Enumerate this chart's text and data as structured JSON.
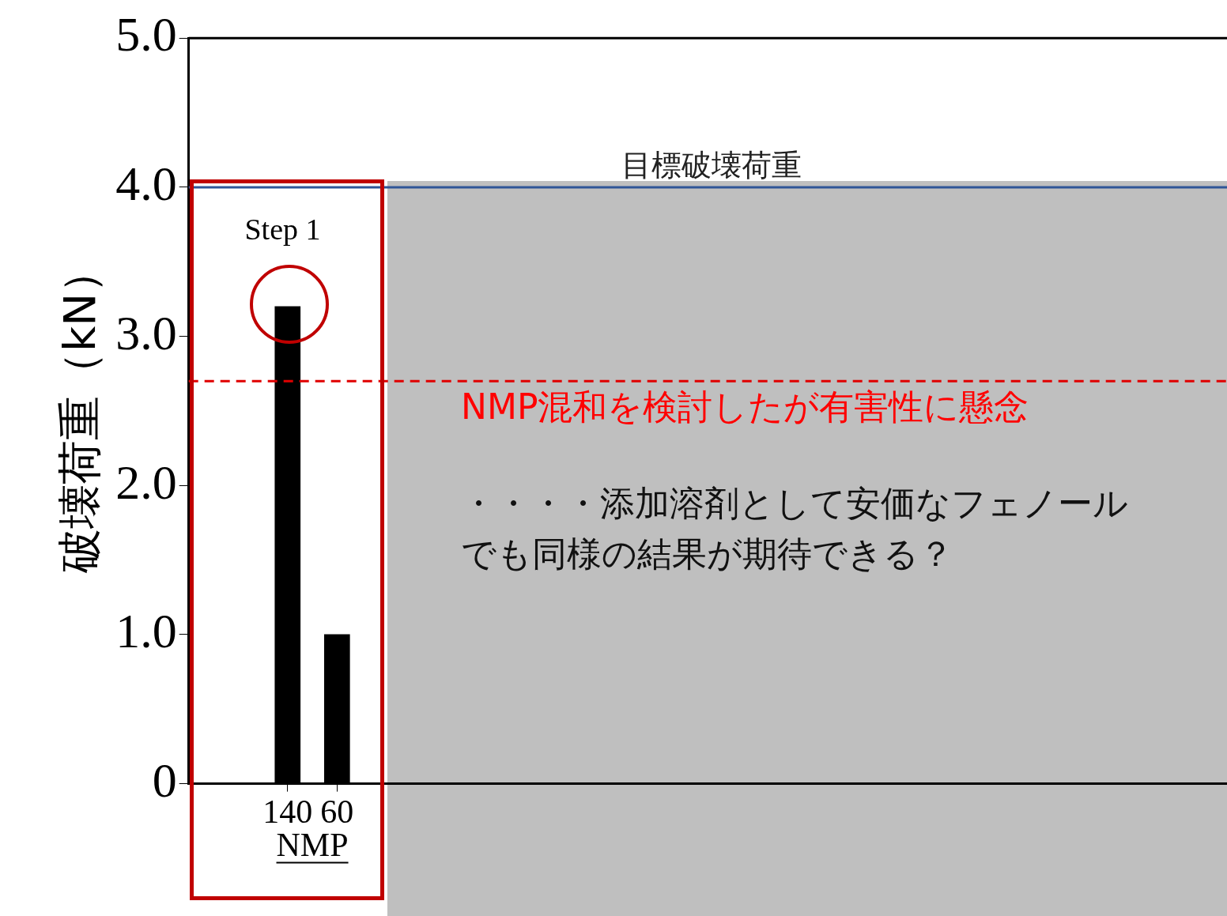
{
  "chart_data": {
    "type": "bar",
    "categories": [
      "140",
      "60"
    ],
    "values": [
      3.2,
      1.0
    ],
    "color": "#000000",
    "xlabel": "NMP",
    "ylabel": "破壊荷重（kN）",
    "ylim": [
      0,
      5
    ],
    "yticks": [
      0,
      {
        "value": 1,
        "label": "1.0"
      },
      {
        "value": 2,
        "label": "2.0"
      },
      {
        "value": 3,
        "label": "3.0"
      },
      {
        "value": 4,
        "label": "4.0"
      },
      {
        "value": 5,
        "label": "5.0"
      }
    ],
    "ref_lines": [
      {
        "axis": "y",
        "value": 4,
        "label": "目標破壊荷重",
        "color": "#2f5597"
      },
      {
        "axis": "y",
        "value": 2.7,
        "color": "#e00000",
        "line_style": "dashed"
      }
    ],
    "annotations": [
      "Step 1",
      "NMP混和を検討したが有害性に懸念",
      "・・・・添加溶剤として安価なフェノールでも同様の結果が期待できる？"
    ],
    "legend": false
  }
}
